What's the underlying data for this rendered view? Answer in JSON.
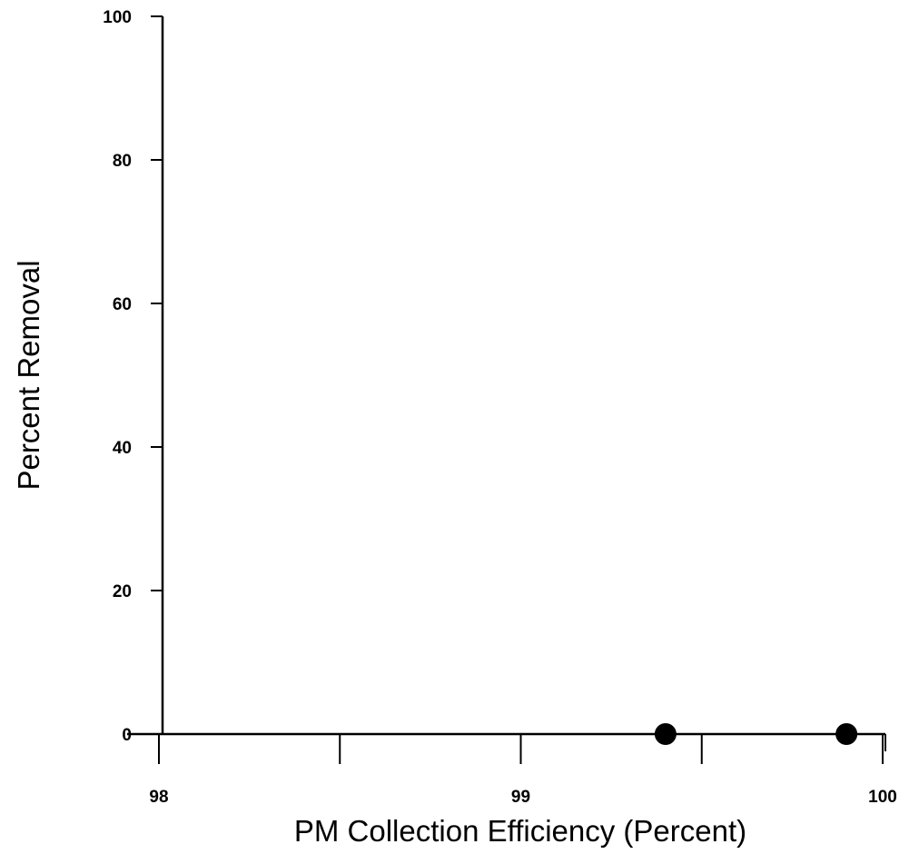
{
  "chart_data": {
    "type": "scatter",
    "title": "",
    "xlabel": "PM Collection Efficiency (Percent)",
    "ylabel": "Percent Removal",
    "xlim": [
      98,
      100
    ],
    "ylim": [
      0,
      100
    ],
    "x_ticks": [
      98,
      98.5,
      99,
      99.5,
      100
    ],
    "x_tick_labels": [
      "98",
      "",
      "99",
      "",
      "100"
    ],
    "y_ticks": [
      0,
      20,
      40,
      60,
      80,
      100
    ],
    "y_tick_labels": [
      "0",
      "20",
      "40",
      "60",
      "80",
      "100"
    ],
    "grid": false,
    "series": [
      {
        "x": [
          99.4,
          99.9
        ],
        "y": [
          0,
          0
        ],
        "color": "#000000",
        "marker": "filled-circle"
      }
    ]
  }
}
